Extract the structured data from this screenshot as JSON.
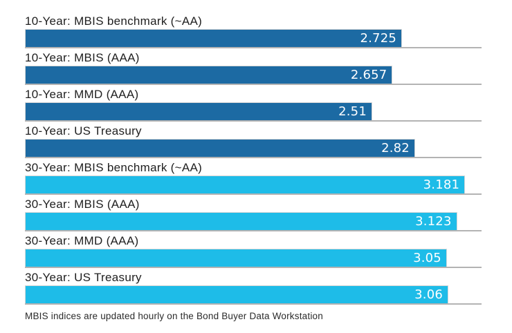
{
  "chart_data": {
    "type": "bar",
    "orientation": "horizontal",
    "title": "",
    "xlabel": "",
    "ylabel": "",
    "xlim": [
      0,
      3.3
    ],
    "grid": false,
    "legend": false,
    "colors": {
      "ten_year": "#1c6aa3",
      "thirty_year": "#1ebce8",
      "baseline": "#b3b3b3",
      "label_text": "#1f1f1f",
      "value_text": "#ffffff"
    },
    "bars": [
      {
        "label": "10-Year: MBIS benchmark (~AA)",
        "value": 2.725,
        "display": "2.725",
        "group": "10-year",
        "color": "#1c6aa3"
      },
      {
        "label": "10-Year: MBIS (AAA)",
        "value": 2.657,
        "display": "2.657",
        "group": "10-year",
        "color": "#1c6aa3"
      },
      {
        "label": "10-Year: MMD (AAA)",
        "value": 2.51,
        "display": "2.51",
        "group": "10-year",
        "color": "#1c6aa3"
      },
      {
        "label": "10-Year: US Treasury",
        "value": 2.82,
        "display": "2.82",
        "group": "10-year",
        "color": "#1c6aa3"
      },
      {
        "label": "30-Year: MBIS benchmark (~AA)",
        "value": 3.181,
        "display": "3.181",
        "group": "30-year",
        "color": "#1ebce8"
      },
      {
        "label": "30-Year: MBIS (AAA)",
        "value": 3.123,
        "display": "3.123",
        "group": "30-year",
        "color": "#1ebce8"
      },
      {
        "label": "30-Year: MMD (AAA)",
        "value": 3.05,
        "display": "3.05",
        "group": "30-year",
        "color": "#1ebce8"
      },
      {
        "label": "30-Year: US Treasury",
        "value": 3.06,
        "display": "3.06",
        "group": "30-year",
        "color": "#1ebce8"
      }
    ],
    "footnote": "MBIS indices are updated hourly on the Bond Buyer Data Workstation"
  }
}
